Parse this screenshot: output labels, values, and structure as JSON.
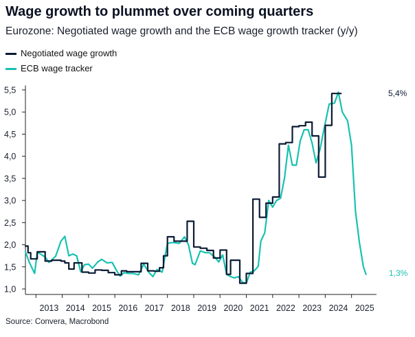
{
  "colors": {
    "negotiated": "#0b1a33",
    "tracker": "#17c1b0",
    "axis": "#222222",
    "text": "#1a1f2c"
  },
  "title": "Wage growth to plummet over coming quarters",
  "subtitle": "Eurozone: Negotiated wage growth and the ECB wage growth tracker (y/y)",
  "source": "Source: Convera, Macrobond",
  "chart_data": {
    "type": "line",
    "title": "Wage growth to plummet over coming quarters",
    "subtitle": "Eurozone: Negotiated wage growth and the ECB wage growth tracker (y/y)",
    "xlabel": "",
    "ylabel": "",
    "xlim": [
      2012.6,
      2025.95
    ],
    "ylim": [
      0.9,
      5.6
    ],
    "y_ticks": [
      1.0,
      1.5,
      2.0,
      2.5,
      3.0,
      3.5,
      4.0,
      4.5,
      5.0,
      5.5
    ],
    "y_tick_labels": [
      "1,0",
      "1,5",
      "2,0",
      "2,5",
      "3,0",
      "3,5",
      "4,0",
      "4,5",
      "5,0",
      "5,5"
    ],
    "x_ticks": [
      "2013",
      "2014",
      "2015",
      "2016",
      "2017",
      "2018",
      "2019",
      "2020",
      "2021",
      "2022",
      "2023",
      "2024",
      "2025"
    ],
    "legend_position": "top-left",
    "grid": false,
    "series": [
      {
        "name": "Negotiated wage growth",
        "key": "negotiated",
        "end_label": "5,4%",
        "style": "step",
        "x": [
          2012.6,
          2012.7,
          2012.8,
          2012.95,
          2013.05,
          2013.2,
          2013.35,
          2013.5,
          2013.6,
          2013.75,
          2013.95,
          2014.1,
          2014.25,
          2014.45,
          2014.6,
          2014.75,
          2014.9,
          2015.0,
          2015.25,
          2015.5,
          2015.75,
          2016.0,
          2016.25,
          2016.45,
          2016.6,
          2016.75,
          2017.0,
          2017.25,
          2017.5,
          2017.7,
          2017.85,
          2018.0,
          2018.25,
          2018.5,
          2018.75,
          2019.0,
          2019.25,
          2019.5,
          2019.75,
          2020.0,
          2020.25,
          2020.4,
          2020.5,
          2020.75,
          2020.9,
          2021.0,
          2021.25,
          2021.5,
          2021.75,
          2022.0,
          2022.25,
          2022.5,
          2022.75,
          2023.0,
          2023.25,
          2023.5,
          2023.75,
          2024.0,
          2024.25,
          2024.35,
          2024.6
        ],
        "values": [
          1.97,
          1.82,
          1.68,
          1.68,
          1.84,
          1.84,
          1.63,
          1.63,
          1.65,
          1.65,
          1.63,
          1.59,
          1.45,
          1.59,
          1.59,
          1.38,
          1.38,
          1.36,
          1.43,
          1.42,
          1.37,
          1.32,
          1.41,
          1.39,
          1.39,
          1.39,
          1.58,
          1.41,
          1.4,
          1.48,
          1.75,
          2.18,
          2.08,
          2.08,
          2.53,
          1.95,
          1.92,
          1.87,
          1.7,
          1.88,
          1.33,
          1.65,
          1.65,
          1.13,
          1.13,
          1.35,
          3.03,
          2.62,
          2.94,
          3.08,
          4.28,
          4.31,
          4.67,
          4.69,
          4.77,
          4.46,
          3.53,
          4.7,
          5.42,
          5.42,
          5.42
        ]
      },
      {
        "name": "ECB wage tracker",
        "key": "tracker",
        "end_label": "1,3%",
        "style": "line",
        "x": [
          2012.6,
          2012.75,
          2012.95,
          2013.05,
          2013.2,
          2013.35,
          2013.5,
          2013.75,
          2013.95,
          2014.1,
          2014.25,
          2014.4,
          2014.55,
          2014.7,
          2014.85,
          2015.0,
          2015.15,
          2015.35,
          2015.5,
          2015.7,
          2015.9,
          2016.05,
          2016.2,
          2016.35,
          2016.5,
          2016.7,
          2016.9,
          2017.1,
          2017.3,
          2017.45,
          2017.6,
          2017.8,
          2018.0,
          2018.2,
          2018.45,
          2018.65,
          2018.8,
          2018.95,
          2019.05,
          2019.25,
          2019.45,
          2019.6,
          2019.8,
          2019.95,
          2020.1,
          2020.25,
          2020.4,
          2020.55,
          2020.7,
          2020.85,
          2021.0,
          2021.15,
          2021.3,
          2021.45,
          2021.55,
          2021.7,
          2021.85,
          2022.0,
          2022.15,
          2022.3,
          2022.45,
          2022.6,
          2022.75,
          2022.9,
          2023.05,
          2023.2,
          2023.35,
          2023.5,
          2023.65,
          2023.8,
          2023.95,
          2024.15,
          2024.35,
          2024.5,
          2024.65,
          2024.85,
          2025.0,
          2025.15,
          2025.3,
          2025.45,
          2025.55
        ],
        "values": [
          1.84,
          1.6,
          1.35,
          1.83,
          1.78,
          1.72,
          1.6,
          1.74,
          2.08,
          2.19,
          1.75,
          1.79,
          1.75,
          1.39,
          1.55,
          1.56,
          1.47,
          1.61,
          1.67,
          1.59,
          1.6,
          1.43,
          1.29,
          1.37,
          1.35,
          1.35,
          1.32,
          1.56,
          1.37,
          1.28,
          1.44,
          1.38,
          2.03,
          2.05,
          2.03,
          2.18,
          2.0,
          1.58,
          1.55,
          1.86,
          1.82,
          1.82,
          1.72,
          1.61,
          1.77,
          1.33,
          1.28,
          1.25,
          1.28,
          1.15,
          1.13,
          1.38,
          1.41,
          1.51,
          2.08,
          2.27,
          3.0,
          2.85,
          3.0,
          3.05,
          3.5,
          4.25,
          3.8,
          3.8,
          4.35,
          4.6,
          4.6,
          4.3,
          3.85,
          4.15,
          4.6,
          5.18,
          5.2,
          5.45,
          5.0,
          4.8,
          4.25,
          2.75,
          2.05,
          1.5,
          1.33
        ]
      }
    ]
  },
  "legend": {
    "items": [
      {
        "label": "Negotiated wage growth",
        "color": "#0b1a33"
      },
      {
        "label": "ECB wage tracker",
        "color": "#17c1b0"
      }
    ]
  }
}
